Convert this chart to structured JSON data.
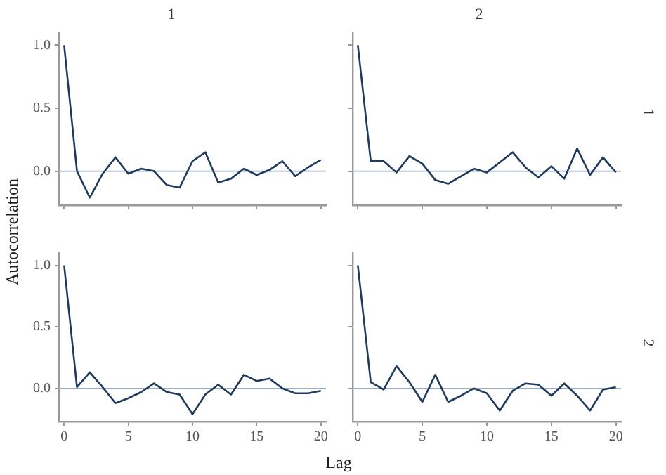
{
  "chart_data": [
    {
      "type": "line",
      "title": "1",
      "ylabel": "Autocorrelation",
      "tick_labels": "y",
      "x": [
        0,
        1,
        2,
        3,
        4,
        5,
        6,
        7,
        8,
        9,
        10,
        11,
        12,
        13,
        14,
        15,
        16,
        17,
        18,
        19,
        20
      ],
      "color": "#1f3a5c",
      "values": [
        1.0,
        0.0,
        -0.21,
        -0.02,
        0.11,
        -0.02,
        0.02,
        0.0,
        -0.11,
        -0.13,
        0.08,
        0.15,
        -0.09,
        -0.06,
        0.02,
        -0.03,
        0.01,
        0.08,
        -0.04,
        0.03,
        0.09
      ],
      "xlim": [
        -0.4,
        20.4
      ],
      "xticks": [
        0,
        5,
        10,
        15,
        20
      ],
      "ylim": [
        -0.27,
        1.1
      ],
      "yticks": [
        {
          "value": 0,
          "label": "0.0"
        },
        {
          "value": 0.5,
          "label": "0.5"
        },
        {
          "value": 1,
          "label": "1.0"
        }
      ],
      "ref_lines": [
        {
          "axis": "y",
          "value": 0,
          "color": "#9bb0c8"
        }
      ]
    },
    {
      "type": "line",
      "title": "2",
      "y2label": "1",
      "tick_labels": false,
      "x": [
        0,
        1,
        2,
        3,
        4,
        5,
        6,
        7,
        8,
        9,
        10,
        11,
        12,
        13,
        14,
        15,
        16,
        17,
        18,
        19,
        20
      ],
      "color": "#1f3a5c",
      "values": [
        1.0,
        0.08,
        0.08,
        -0.01,
        0.12,
        0.06,
        -0.07,
        -0.1,
        -0.04,
        0.02,
        -0.01,
        0.07,
        0.15,
        0.03,
        -0.05,
        0.04,
        -0.06,
        0.18,
        -0.03,
        0.11,
        -0.01
      ],
      "xlim": [
        -0.4,
        20.4
      ],
      "xticks": [
        0,
        5,
        10,
        15,
        20
      ],
      "ylim": [
        -0.27,
        1.1
      ],
      "yticks": [
        0,
        0.5,
        1
      ],
      "ref_lines": [
        {
          "axis": "y",
          "value": 0,
          "color": "#9bb0c8"
        }
      ]
    },
    {
      "type": "line",
      "xlabel": "Lag",
      "x": [
        0,
        1,
        2,
        3,
        4,
        5,
        6,
        7,
        8,
        9,
        10,
        11,
        12,
        13,
        14,
        15,
        16,
        17,
        18,
        19,
        20
      ],
      "color": "#1f3a5c",
      "values": [
        1.0,
        0.01,
        0.13,
        0.01,
        -0.12,
        -0.08,
        -0.03,
        0.04,
        -0.03,
        -0.05,
        -0.21,
        -0.05,
        0.03,
        -0.05,
        0.11,
        0.06,
        0.08,
        0.0,
        -0.04,
        -0.04,
        -0.02
      ],
      "xlim": [
        -0.4,
        20.4
      ],
      "xticks": [
        0,
        5,
        10,
        15,
        20
      ],
      "ylim": [
        -0.27,
        1.1
      ],
      "yticks": [
        {
          "value": 0,
          "label": "0.0"
        },
        {
          "value": 0.5,
          "label": "0.5"
        },
        {
          "value": 1,
          "label": "1.0"
        }
      ],
      "ref_lines": [
        {
          "axis": "y",
          "value": 0,
          "color": "#9bb0c8"
        }
      ]
    },
    {
      "type": "line",
      "y2label": "2",
      "tick_labels": "x",
      "x": [
        0,
        1,
        2,
        3,
        4,
        5,
        6,
        7,
        8,
        9,
        10,
        11,
        12,
        13,
        14,
        15,
        16,
        17,
        18,
        19,
        20
      ],
      "color": "#1f3a5c",
      "values": [
        1.0,
        0.05,
        -0.01,
        0.18,
        0.05,
        -0.11,
        0.11,
        -0.11,
        -0.06,
        0.0,
        -0.04,
        -0.18,
        -0.02,
        0.04,
        0.03,
        -0.06,
        0.04,
        -0.06,
        -0.18,
        -0.01,
        0.01
      ],
      "xlim": [
        -0.4,
        20.4
      ],
      "xticks": [
        0,
        5,
        10,
        15,
        20
      ],
      "ylim": [
        -0.27,
        1.1
      ],
      "yticks": [
        0,
        0.5,
        1
      ],
      "ref_lines": [
        {
          "axis": "y",
          "value": 0,
          "color": "#9bb0c8"
        }
      ]
    }
  ]
}
